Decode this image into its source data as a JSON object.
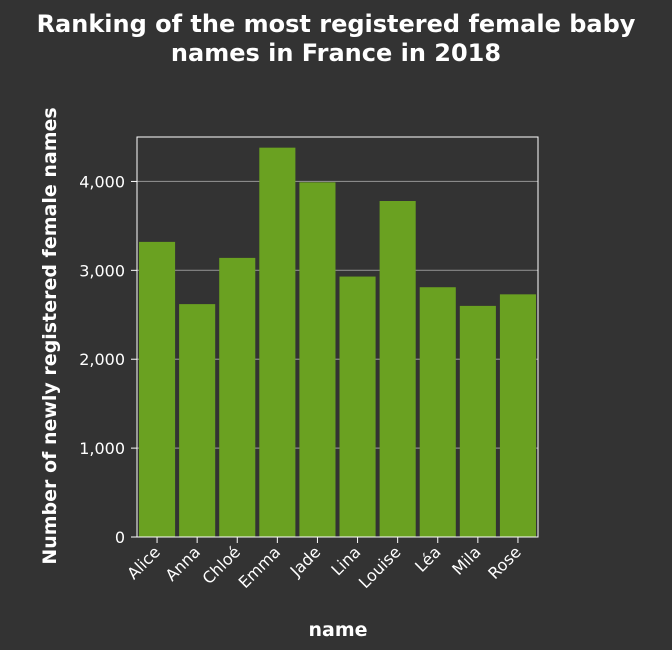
{
  "chart_data": {
    "type": "bar",
    "title_lines": [
      "Ranking of the most registered female baby",
      "names in France in 2018"
    ],
    "xlabel": "name",
    "ylabel": "Number of newly registered female names",
    "categories": [
      "Alice",
      "Anna",
      "Chloé",
      "Emma",
      "Jade",
      "Lina",
      "Louise",
      "Léa",
      "Mila",
      "Rose"
    ],
    "values": [
      3320,
      2620,
      3140,
      4380,
      3990,
      2930,
      3780,
      2810,
      2600,
      2730
    ],
    "ylim": [
      0,
      4500
    ],
    "yticks": [
      0,
      1000,
      2000,
      3000,
      4000
    ],
    "ytick_labels": [
      "0",
      "1,000",
      "2,000",
      "3,000",
      "4,000"
    ],
    "grid": true,
    "colors": {
      "background": "#333333",
      "bar": "#6aa121",
      "grid": "#8a8a8a",
      "text": "#ffffff"
    }
  }
}
